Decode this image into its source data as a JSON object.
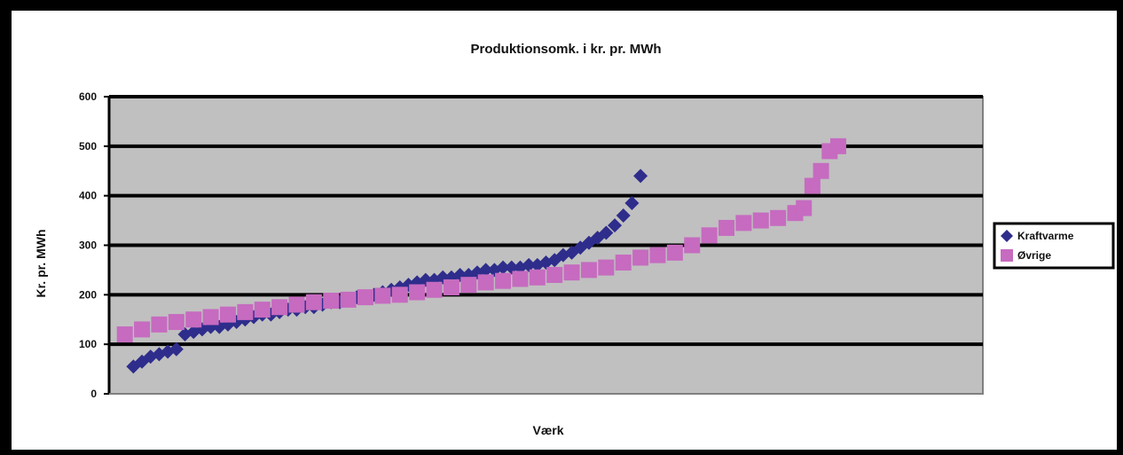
{
  "chart_data": {
    "type": "scatter",
    "title": "Produktionsomk. i kr. pr. MWh",
    "xlabel": "Værk",
    "ylabel": "Kr. pr. MWh",
    "ylim": [
      0,
      600
    ],
    "yticks": [
      0,
      100,
      200,
      300,
      400,
      500,
      600
    ],
    "xlim": [
      0,
      100
    ],
    "grid": true,
    "legend_position": "right",
    "series": [
      {
        "name": "Kraftvarme",
        "color": "#2e2d8c",
        "marker": "diamond",
        "values": [
          [
            2,
            55
          ],
          [
            3,
            65
          ],
          [
            4,
            75
          ],
          [
            5,
            80
          ],
          [
            6,
            85
          ],
          [
            7,
            90
          ],
          [
            8,
            120
          ],
          [
            9,
            125
          ],
          [
            10,
            130
          ],
          [
            11,
            135
          ],
          [
            12,
            135
          ],
          [
            13,
            140
          ],
          [
            14,
            145
          ],
          [
            15,
            150
          ],
          [
            16,
            155
          ],
          [
            17,
            160
          ],
          [
            18,
            160
          ],
          [
            19,
            165
          ],
          [
            20,
            170
          ],
          [
            21,
            170
          ],
          [
            22,
            175
          ],
          [
            23,
            175
          ],
          [
            24,
            180
          ],
          [
            25,
            185
          ],
          [
            26,
            185
          ],
          [
            27,
            190
          ],
          [
            28,
            195
          ],
          [
            29,
            195
          ],
          [
            30,
            200
          ],
          [
            31,
            205
          ],
          [
            32,
            210
          ],
          [
            33,
            215
          ],
          [
            34,
            220
          ],
          [
            35,
            225
          ],
          [
            36,
            230
          ],
          [
            37,
            230
          ],
          [
            38,
            235
          ],
          [
            39,
            235
          ],
          [
            40,
            240
          ],
          [
            41,
            240
          ],
          [
            42,
            245
          ],
          [
            43,
            250
          ],
          [
            44,
            250
          ],
          [
            45,
            255
          ],
          [
            46,
            255
          ],
          [
            47,
            255
          ],
          [
            48,
            260
          ],
          [
            49,
            260
          ],
          [
            50,
            265
          ],
          [
            51,
            270
          ],
          [
            52,
            280
          ],
          [
            53,
            285
          ],
          [
            54,
            295
          ],
          [
            55,
            305
          ],
          [
            56,
            315
          ],
          [
            57,
            325
          ],
          [
            58,
            340
          ],
          [
            59,
            360
          ],
          [
            60,
            385
          ],
          [
            61,
            440
          ]
        ]
      },
      {
        "name": "Øvrige",
        "color": "#c66bc0",
        "marker": "square",
        "values": [
          [
            1,
            120
          ],
          [
            3,
            130
          ],
          [
            5,
            140
          ],
          [
            7,
            145
          ],
          [
            9,
            150
          ],
          [
            11,
            155
          ],
          [
            13,
            160
          ],
          [
            15,
            165
          ],
          [
            17,
            170
          ],
          [
            19,
            175
          ],
          [
            21,
            180
          ],
          [
            23,
            185
          ],
          [
            25,
            188
          ],
          [
            27,
            190
          ],
          [
            29,
            195
          ],
          [
            31,
            198
          ],
          [
            33,
            200
          ],
          [
            35,
            205
          ],
          [
            37,
            210
          ],
          [
            39,
            215
          ],
          [
            41,
            220
          ],
          [
            43,
            225
          ],
          [
            45,
            228
          ],
          [
            47,
            232
          ],
          [
            49,
            235
          ],
          [
            51,
            240
          ],
          [
            53,
            245
          ],
          [
            55,
            250
          ],
          [
            57,
            255
          ],
          [
            59,
            265
          ],
          [
            61,
            275
          ],
          [
            63,
            280
          ],
          [
            65,
            285
          ],
          [
            67,
            300
          ],
          [
            69,
            320
          ],
          [
            71,
            335
          ],
          [
            73,
            345
          ],
          [
            75,
            350
          ],
          [
            77,
            355
          ],
          [
            79,
            365
          ],
          [
            80,
            375
          ],
          [
            81,
            420
          ],
          [
            82,
            450
          ],
          [
            83,
            490
          ],
          [
            84,
            500
          ]
        ]
      }
    ]
  }
}
